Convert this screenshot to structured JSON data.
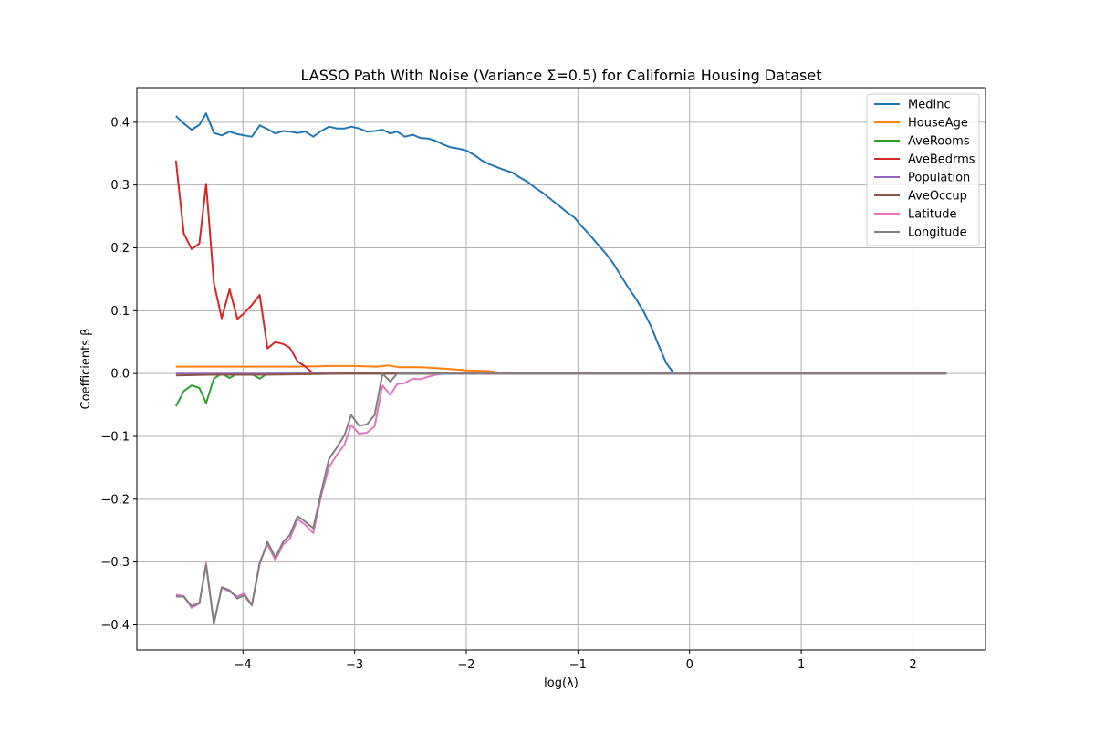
{
  "chart_data": {
    "type": "line",
    "title": "LASSO Path With Noise (Variance Σ=0.5) for California Housing Dataset",
    "xlabel": "log(λ)",
    "ylabel": "Coefficients β",
    "xlim": [
      -4.95,
      2.65
    ],
    "ylim": [
      -0.44,
      0.455
    ],
    "xticks": [
      -4,
      -3,
      -2,
      -1,
      0,
      1,
      2
    ],
    "xtick_labels": [
      "−4",
      "−3",
      "−2",
      "−1",
      "0",
      "1",
      "2"
    ],
    "yticks": [
      -0.4,
      -0.3,
      -0.2,
      -0.1,
      0.0,
      0.1,
      0.2,
      0.3,
      0.4
    ],
    "ytick_labels": [
      "−0.4",
      "−0.3",
      "−0.2",
      "−0.1",
      "0.0",
      "0.1",
      "0.2",
      "0.3",
      "0.4"
    ],
    "grid": true,
    "legend_position": "top-right",
    "series": [
      {
        "name": "MedInc",
        "color": "#1f77b4",
        "points": [
          [
            -4.6,
            0.41
          ],
          [
            -4.53,
            0.398
          ],
          [
            -4.46,
            0.388
          ],
          [
            -4.39,
            0.396
          ],
          [
            -4.33,
            0.414
          ],
          [
            -4.26,
            0.383
          ],
          [
            -4.19,
            0.379
          ],
          [
            -4.12,
            0.385
          ],
          [
            -4.05,
            0.381
          ],
          [
            -3.99,
            0.379
          ],
          [
            -3.92,
            0.377
          ],
          [
            -3.85,
            0.395
          ],
          [
            -3.78,
            0.389
          ],
          [
            -3.71,
            0.382
          ],
          [
            -3.64,
            0.386
          ],
          [
            -3.58,
            0.385
          ],
          [
            -3.51,
            0.383
          ],
          [
            -3.44,
            0.385
          ],
          [
            -3.37,
            0.377
          ],
          [
            -3.3,
            0.386
          ],
          [
            -3.23,
            0.393
          ],
          [
            -3.16,
            0.39
          ],
          [
            -3.09,
            0.39
          ],
          [
            -3.03,
            0.393
          ],
          [
            -2.96,
            0.39
          ],
          [
            -2.89,
            0.385
          ],
          [
            -2.82,
            0.386
          ],
          [
            -2.75,
            0.388
          ],
          [
            -2.68,
            0.382
          ],
          [
            -2.62,
            0.385
          ],
          [
            -2.55,
            0.377
          ],
          [
            -2.48,
            0.38
          ],
          [
            -2.41,
            0.375
          ],
          [
            -2.34,
            0.374
          ],
          [
            -2.27,
            0.37
          ],
          [
            -2.2,
            0.364
          ],
          [
            -2.14,
            0.36
          ],
          [
            -2.07,
            0.358
          ],
          [
            -2.0,
            0.355
          ],
          [
            -1.93,
            0.348
          ],
          [
            -1.86,
            0.339
          ],
          [
            -1.79,
            0.333
          ],
          [
            -1.72,
            0.328
          ],
          [
            -1.66,
            0.324
          ],
          [
            -1.59,
            0.32
          ],
          [
            -1.52,
            0.312
          ],
          [
            -1.45,
            0.305
          ],
          [
            -1.38,
            0.295
          ],
          [
            -1.31,
            0.287
          ],
          [
            -1.24,
            0.277
          ],
          [
            -1.17,
            0.267
          ],
          [
            -1.1,
            0.257
          ],
          [
            -1.03,
            0.248
          ],
          [
            -0.97,
            0.235
          ],
          [
            -0.9,
            0.222
          ],
          [
            -0.83,
            0.207
          ],
          [
            -0.76,
            0.193
          ],
          [
            -0.69,
            0.177
          ],
          [
            -0.62,
            0.157
          ],
          [
            -0.55,
            0.137
          ],
          [
            -0.48,
            0.119
          ],
          [
            -0.41,
            0.098
          ],
          [
            -0.34,
            0.073
          ],
          [
            -0.28,
            0.046
          ],
          [
            -0.21,
            0.017
          ],
          [
            -0.14,
            0.0
          ],
          [
            2.3,
            0.0
          ]
        ]
      },
      {
        "name": "HouseAge",
        "color": "#ff7f0e",
        "points": [
          [
            -4.6,
            0.011
          ],
          [
            -4.33,
            0.011
          ],
          [
            -4.2,
            0.011
          ],
          [
            -3.85,
            0.011
          ],
          [
            -3.5,
            0.011
          ],
          [
            -3.2,
            0.012
          ],
          [
            -3.0,
            0.012
          ],
          [
            -2.8,
            0.011
          ],
          [
            -2.7,
            0.013
          ],
          [
            -2.6,
            0.01
          ],
          [
            -2.4,
            0.01
          ],
          [
            -2.2,
            0.008
          ],
          [
            -2.0,
            0.005
          ],
          [
            -1.8,
            0.004
          ],
          [
            -1.65,
            0.0
          ],
          [
            2.3,
            0.0
          ]
        ]
      },
      {
        "name": "AveRooms",
        "color": "#2ca02c",
        "points": [
          [
            -4.6,
            -0.052
          ],
          [
            -4.53,
            -0.028
          ],
          [
            -4.46,
            -0.019
          ],
          [
            -4.39,
            -0.023
          ],
          [
            -4.33,
            -0.047
          ],
          [
            -4.26,
            -0.008
          ],
          [
            -4.19,
            0.0
          ],
          [
            -4.12,
            -0.007
          ],
          [
            -4.05,
            0.0
          ],
          [
            -3.92,
            -0.001
          ],
          [
            -3.85,
            -0.008
          ],
          [
            -3.78,
            0.0
          ],
          [
            2.3,
            0.0
          ]
        ]
      },
      {
        "name": "AveBedrms",
        "color": "#d62728",
        "points": [
          [
            -4.6,
            0.339
          ],
          [
            -4.53,
            0.223
          ],
          [
            -4.46,
            0.198
          ],
          [
            -4.39,
            0.207
          ],
          [
            -4.33,
            0.302
          ],
          [
            -4.26,
            0.144
          ],
          [
            -4.19,
            0.088
          ],
          [
            -4.12,
            0.134
          ],
          [
            -4.05,
            0.087
          ],
          [
            -3.99,
            0.096
          ],
          [
            -3.92,
            0.109
          ],
          [
            -3.85,
            0.125
          ],
          [
            -3.78,
            0.04
          ],
          [
            -3.71,
            0.05
          ],
          [
            -3.64,
            0.047
          ],
          [
            -3.58,
            0.041
          ],
          [
            -3.51,
            0.019
          ],
          [
            -3.44,
            0.011
          ],
          [
            -3.37,
            0.0
          ],
          [
            2.3,
            0.0
          ]
        ]
      },
      {
        "name": "Population",
        "color": "#9467bd",
        "points": [
          [
            -4.6,
            0.0
          ],
          [
            2.3,
            0.0
          ]
        ]
      },
      {
        "name": "AveOccup",
        "color": "#8c564b",
        "points": [
          [
            -4.6,
            -0.003
          ],
          [
            -4.3,
            -0.002
          ],
          [
            -3.8,
            -0.002
          ],
          [
            -3.4,
            -0.001
          ],
          [
            -3.1,
            0.0
          ],
          [
            2.3,
            0.0
          ]
        ]
      },
      {
        "name": "Latitude",
        "color": "#e377c2",
        "points": [
          [
            -4.6,
            -0.352
          ],
          [
            -4.53,
            -0.354
          ],
          [
            -4.46,
            -0.373
          ],
          [
            -4.39,
            -0.366
          ],
          [
            -4.33,
            -0.302
          ],
          [
            -4.26,
            -0.398
          ],
          [
            -4.19,
            -0.341
          ],
          [
            -4.12,
            -0.347
          ],
          [
            -4.05,
            -0.355
          ],
          [
            -3.99,
            -0.35
          ],
          [
            -3.92,
            -0.368
          ],
          [
            -3.85,
            -0.3
          ],
          [
            -3.78,
            -0.272
          ],
          [
            -3.71,
            -0.297
          ],
          [
            -3.64,
            -0.272
          ],
          [
            -3.58,
            -0.263
          ],
          [
            -3.51,
            -0.232
          ],
          [
            -3.44,
            -0.241
          ],
          [
            -3.37,
            -0.254
          ],
          [
            -3.3,
            -0.195
          ],
          [
            -3.23,
            -0.149
          ],
          [
            -3.16,
            -0.13
          ],
          [
            -3.09,
            -0.113
          ],
          [
            -3.03,
            -0.082
          ],
          [
            -2.96,
            -0.096
          ],
          [
            -2.89,
            -0.094
          ],
          [
            -2.82,
            -0.084
          ],
          [
            -2.75,
            -0.019
          ],
          [
            -2.68,
            -0.034
          ],
          [
            -2.62,
            -0.017
          ],
          [
            -2.55,
            -0.015
          ],
          [
            -2.48,
            -0.008
          ],
          [
            -2.41,
            -0.009
          ],
          [
            -2.34,
            -0.005
          ],
          [
            -2.27,
            -0.002
          ],
          [
            -2.2,
            0.0
          ],
          [
            2.3,
            0.0
          ]
        ]
      },
      {
        "name": "Longitude",
        "color": "#7f7f7f",
        "points": [
          [
            -4.6,
            -0.355
          ],
          [
            -4.53,
            -0.355
          ],
          [
            -4.46,
            -0.37
          ],
          [
            -4.39,
            -0.365
          ],
          [
            -4.33,
            -0.305
          ],
          [
            -4.26,
            -0.398
          ],
          [
            -4.19,
            -0.34
          ],
          [
            -4.12,
            -0.345
          ],
          [
            -4.05,
            -0.358
          ],
          [
            -3.99,
            -0.353
          ],
          [
            -3.92,
            -0.369
          ],
          [
            -3.85,
            -0.303
          ],
          [
            -3.78,
            -0.268
          ],
          [
            -3.71,
            -0.293
          ],
          [
            -3.64,
            -0.268
          ],
          [
            -3.58,
            -0.257
          ],
          [
            -3.51,
            -0.227
          ],
          [
            -3.44,
            -0.236
          ],
          [
            -3.37,
            -0.246
          ],
          [
            -3.3,
            -0.19
          ],
          [
            -3.23,
            -0.136
          ],
          [
            -3.16,
            -0.118
          ],
          [
            -3.09,
            -0.098
          ],
          [
            -3.03,
            -0.066
          ],
          [
            -2.96,
            -0.083
          ],
          [
            -2.89,
            -0.081
          ],
          [
            -2.82,
            -0.066
          ],
          [
            -2.75,
            0.0
          ],
          [
            -2.68,
            -0.013
          ],
          [
            -2.62,
            0.0
          ],
          [
            2.3,
            0.0
          ]
        ]
      }
    ]
  }
}
